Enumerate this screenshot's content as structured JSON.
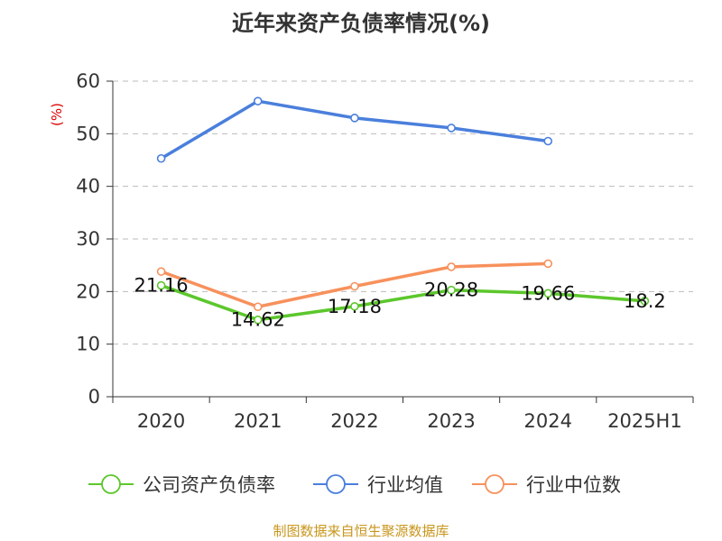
{
  "chart_data": {
    "type": "line",
    "title": "近年来资产负债率情况(%)",
    "ylabel": "(%)",
    "categories": [
      "2020",
      "2021",
      "2022",
      "2023",
      "2024",
      "2025H1"
    ],
    "ylim": [
      0,
      60
    ],
    "yticks": [
      0,
      10,
      20,
      30,
      40,
      50,
      60
    ],
    "grid": true,
    "legend_position": "bottom",
    "series": [
      {
        "name": "公司资产负债率",
        "color": "#5cc72c",
        "values": [
          21.16,
          14.62,
          17.18,
          20.28,
          19.66,
          18.2
        ],
        "labels": [
          "21.16",
          "14.62",
          "17.18",
          "20.28",
          "19.66",
          "18.2"
        ]
      },
      {
        "name": "行业均值",
        "color": "#4a7fdc",
        "values": [
          45.3,
          56.2,
          53.0,
          51.1,
          48.6,
          null
        ]
      },
      {
        "name": "行业中位数",
        "color": "#f7915c",
        "values": [
          23.8,
          17.1,
          21.0,
          24.7,
          25.3,
          null
        ]
      }
    ]
  },
  "footer": {
    "source": "制图数据来自恒生聚源数据库"
  }
}
